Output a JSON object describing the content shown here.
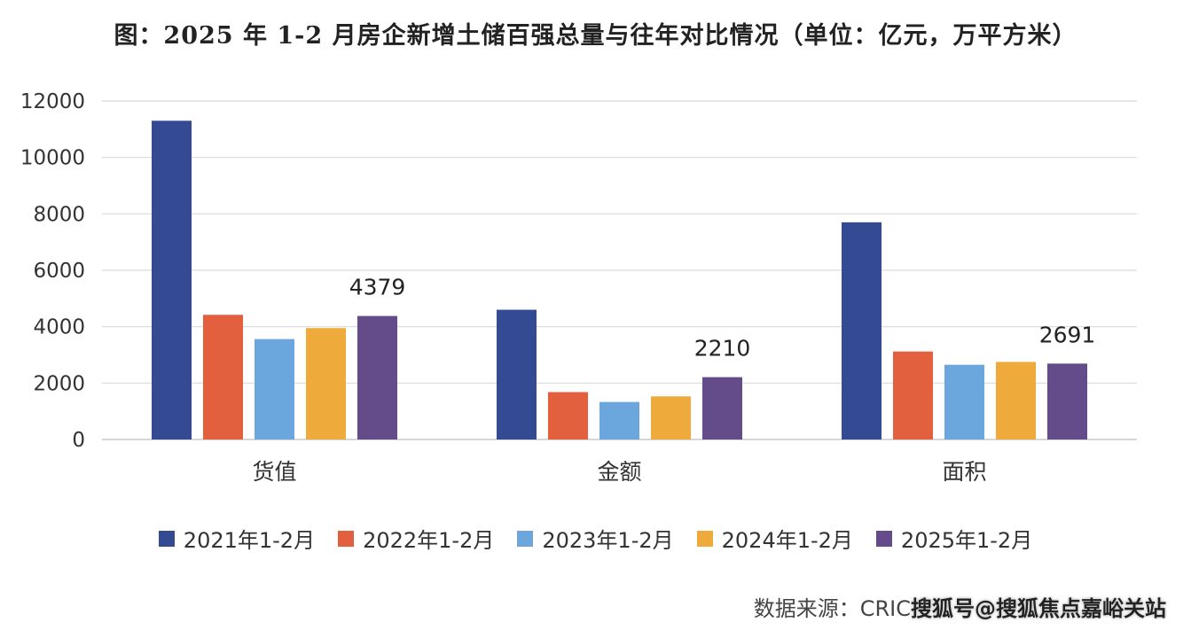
{
  "title": "图：2025 年 1-2 月房企新增土储百强总量与往年对比情况（单位：亿元，万平方米）",
  "chart_data": {
    "type": "bar",
    "categories": [
      "货值",
      "金额",
      "面积"
    ],
    "series": [
      {
        "name": "2021年1-2月",
        "color": "#344a93",
        "values": [
          11300,
          4600,
          7700
        ]
      },
      {
        "name": "2022年1-2月",
        "color": "#e3603e",
        "values": [
          4420,
          1680,
          3120
        ]
      },
      {
        "name": "2023年1-2月",
        "color": "#6ba7dc",
        "values": [
          3560,
          1330,
          2650
        ]
      },
      {
        "name": "2024年1-2月",
        "color": "#eeaa3a",
        "values": [
          3950,
          1530,
          2750
        ]
      },
      {
        "name": "2025年1-2月",
        "color": "#644b8a",
        "values": [
          4379,
          2210,
          2691
        ]
      }
    ],
    "data_labels": [
      {
        "series": 4,
        "category": 0,
        "text": "4379"
      },
      {
        "series": 4,
        "category": 1,
        "text": "2210"
      },
      {
        "series": 4,
        "category": 2,
        "text": "2691"
      }
    ],
    "yticks": [
      "0",
      "2000",
      "4000",
      "6000",
      "8000",
      "10000",
      "12000"
    ],
    "ylim": [
      0,
      12000
    ],
    "grid": true,
    "legend_position": "bottom"
  },
  "source": {
    "label": "数据来源：CRIC",
    "watermark": "搜狐号@搜狐焦点嘉峪关站"
  }
}
